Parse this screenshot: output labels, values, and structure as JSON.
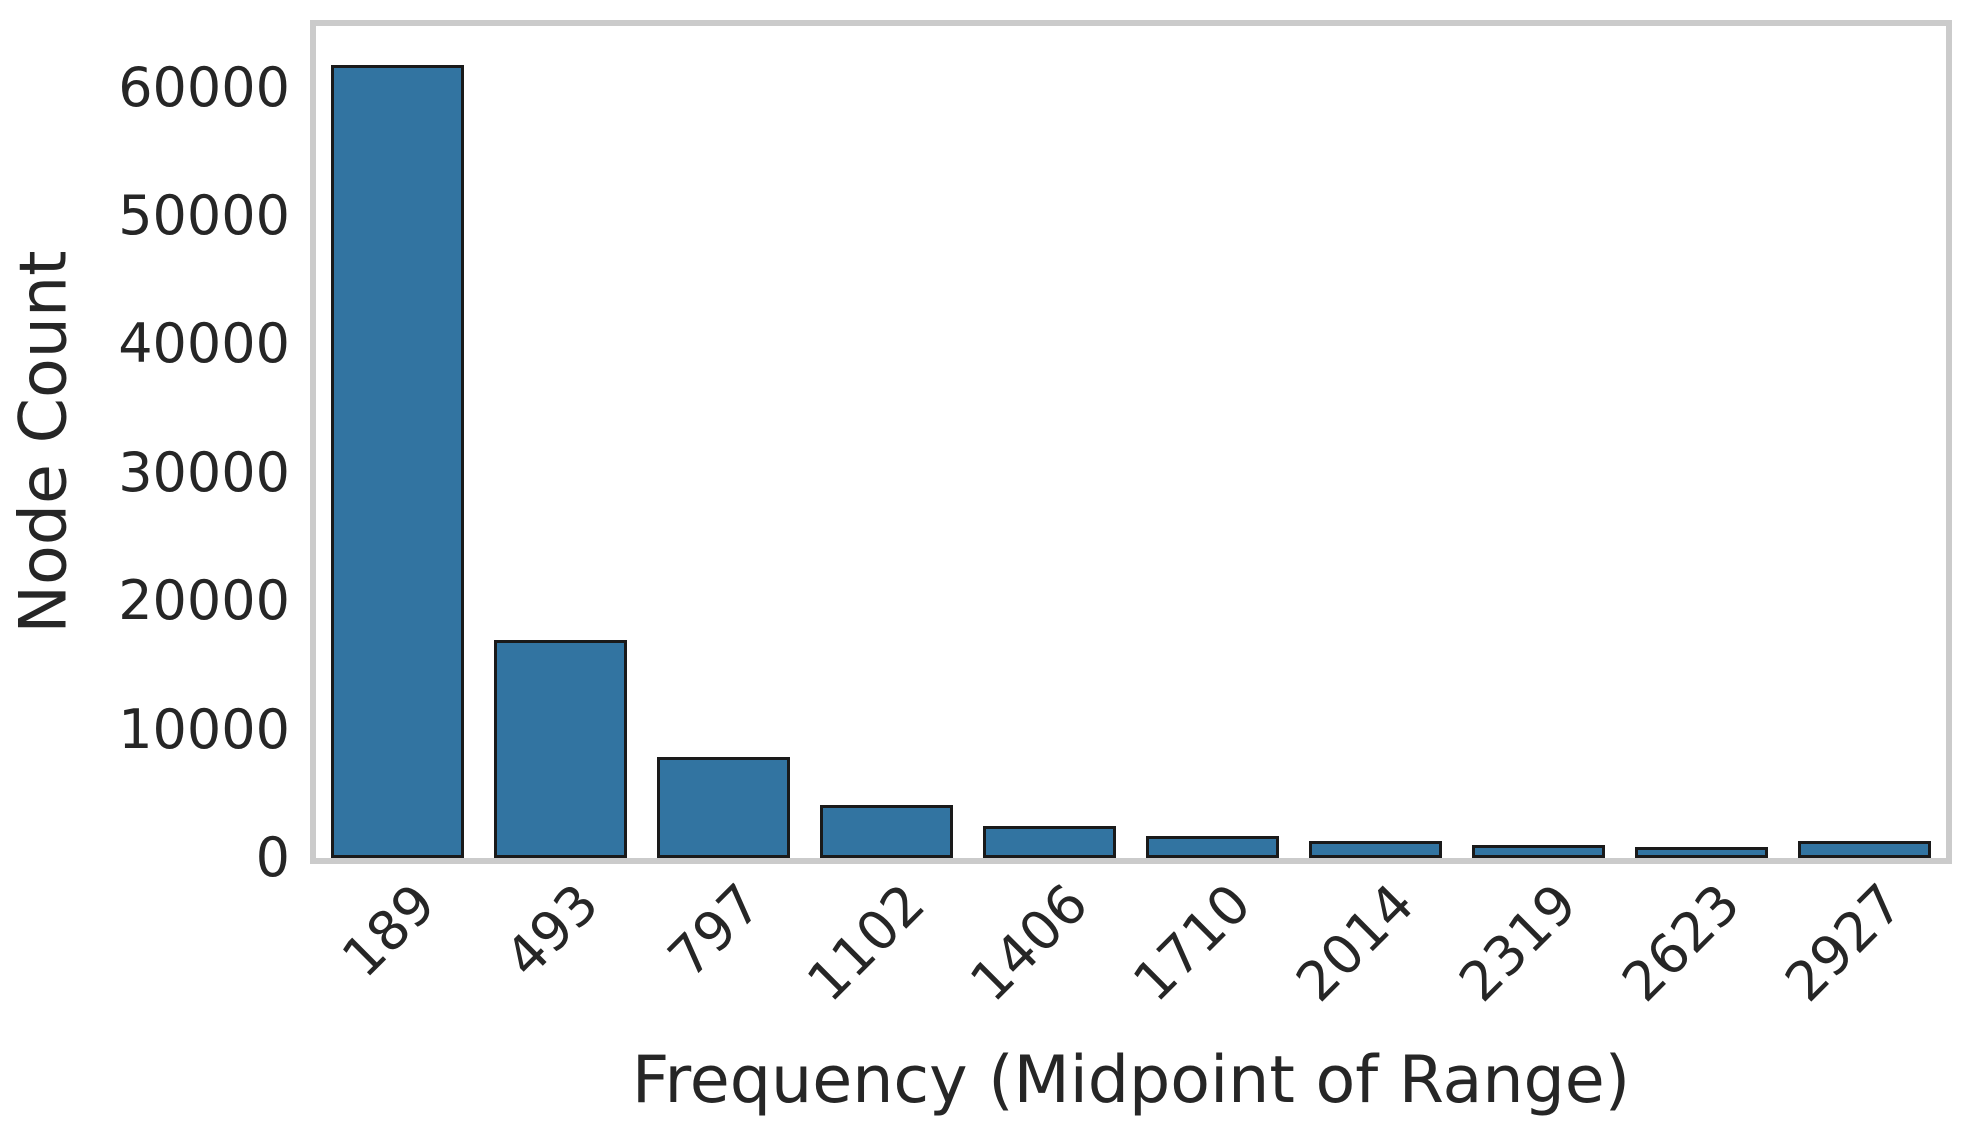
{
  "figure": {
    "background": "#ffffff",
    "plot_border_color": "#cbcbcb",
    "text_color": "#262626"
  },
  "chart_data": {
    "type": "bar",
    "title": "",
    "xlabel": "Frequency (Midpoint of Range)",
    "ylabel": "Node Count",
    "categories": [
      "189",
      "493",
      "797",
      "1102",
      "1406",
      "1710",
      "2014",
      "2319",
      "2623",
      "2927"
    ],
    "values": [
      61800,
      17000,
      7900,
      4100,
      2500,
      1700,
      1300,
      1050,
      850,
      1300
    ],
    "yticks": [
      0,
      10000,
      20000,
      30000,
      40000,
      50000,
      60000
    ],
    "ylim": [
      0,
      64800
    ],
    "xtick_rotation": 45,
    "grid": false,
    "legend": null,
    "bar_color": "#3274a1",
    "bar_edge_color": "#1a1a1a"
  }
}
